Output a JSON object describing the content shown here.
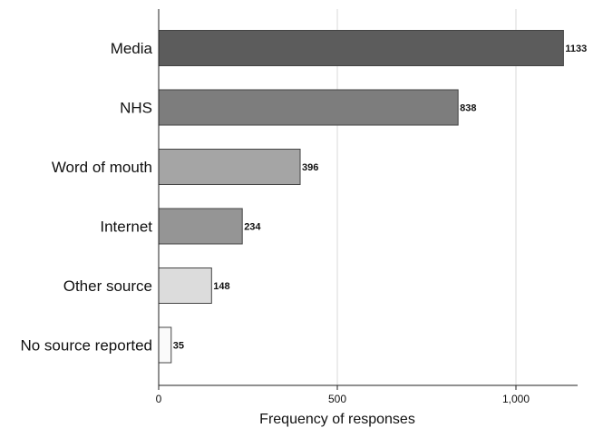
{
  "chart_data": {
    "type": "bar",
    "orientation": "horizontal",
    "title": "",
    "xlabel": "Frequency of responses",
    "ylabel": "",
    "categories": [
      "Media",
      "NHS",
      "Word of mouth",
      "Internet",
      "Other source",
      "No source reported"
    ],
    "values": [
      1133,
      838,
      396,
      234,
      148,
      35
    ],
    "data_labels": [
      "1133",
      "838",
      "396",
      "234",
      "148",
      "35"
    ],
    "bar_colors": [
      "#5c5c5c",
      "#7d7d7d",
      "#a5a5a5",
      "#959595",
      "#dcdcdc",
      "#fafafa"
    ],
    "xlim": [
      0,
      1150
    ],
    "xticks": [
      0,
      500,
      1000
    ],
    "xtick_labels": [
      "0",
      "500",
      "1,000"
    ],
    "grid": true,
    "legend": "none"
  }
}
